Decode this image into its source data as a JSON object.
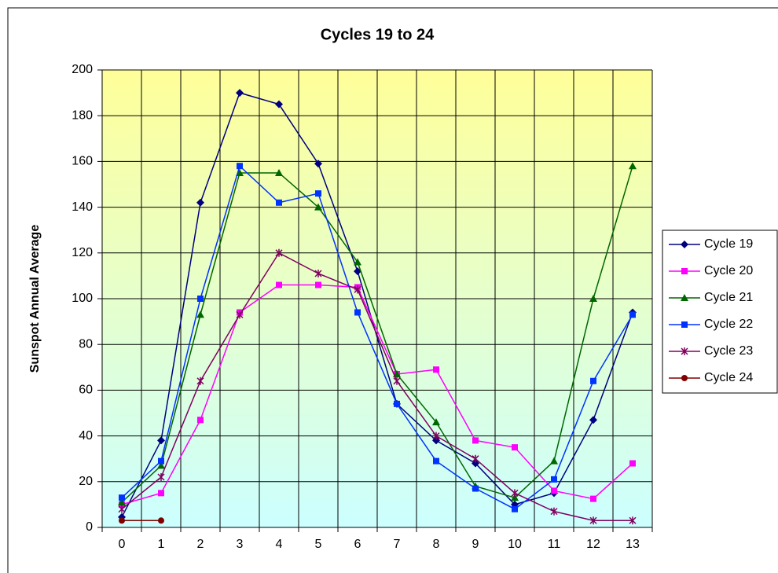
{
  "chart_data": {
    "type": "line",
    "title": "Cycles 19 to 24",
    "y_label": "Sunspot Annual Average",
    "categories": [
      0,
      1,
      2,
      3,
      4,
      5,
      6,
      7,
      8,
      9,
      10,
      11,
      12,
      13
    ],
    "ylim": [
      0,
      200
    ],
    "yticks": [
      0,
      20,
      40,
      60,
      80,
      100,
      120,
      140,
      160,
      180,
      200
    ],
    "grid": true,
    "legend": "right",
    "series": [
      {
        "name": "Cycle 19",
        "color": "#000080",
        "marker": "diamond",
        "values": [
          4.5,
          38,
          142,
          190,
          185,
          159,
          112,
          54,
          38,
          28,
          10,
          15,
          47,
          94
        ]
      },
      {
        "name": "Cycle 20",
        "color": "#ff00ff",
        "marker": "square",
        "values": [
          10,
          15,
          47,
          94,
          106,
          106,
          105,
          67,
          69,
          38,
          35,
          16,
          12.5,
          28
        ]
      },
      {
        "name": "Cycle 21",
        "color": "#006600",
        "marker": "triangle",
        "values": [
          11,
          27,
          93,
          155,
          155,
          140,
          116,
          67,
          46,
          18,
          13,
          29,
          100,
          158
        ]
      },
      {
        "name": "Cycle 22",
        "color": "#0033ff",
        "marker": "square",
        "values": [
          13,
          29,
          100,
          158,
          142,
          146,
          94,
          54,
          29,
          17,
          8,
          21,
          64,
          93
        ]
      },
      {
        "name": "Cycle 23",
        "color": "#800060",
        "marker": "star",
        "values": [
          8,
          22,
          64,
          93,
          120,
          111,
          104,
          64,
          40,
          30,
          15,
          7,
          3,
          3
        ]
      },
      {
        "name": "Cycle 24",
        "color": "#800000",
        "marker": "circle",
        "values": [
          3,
          3,
          null,
          null,
          null,
          null,
          null,
          null,
          null,
          null,
          null,
          null,
          null,
          null
        ]
      }
    ]
  }
}
